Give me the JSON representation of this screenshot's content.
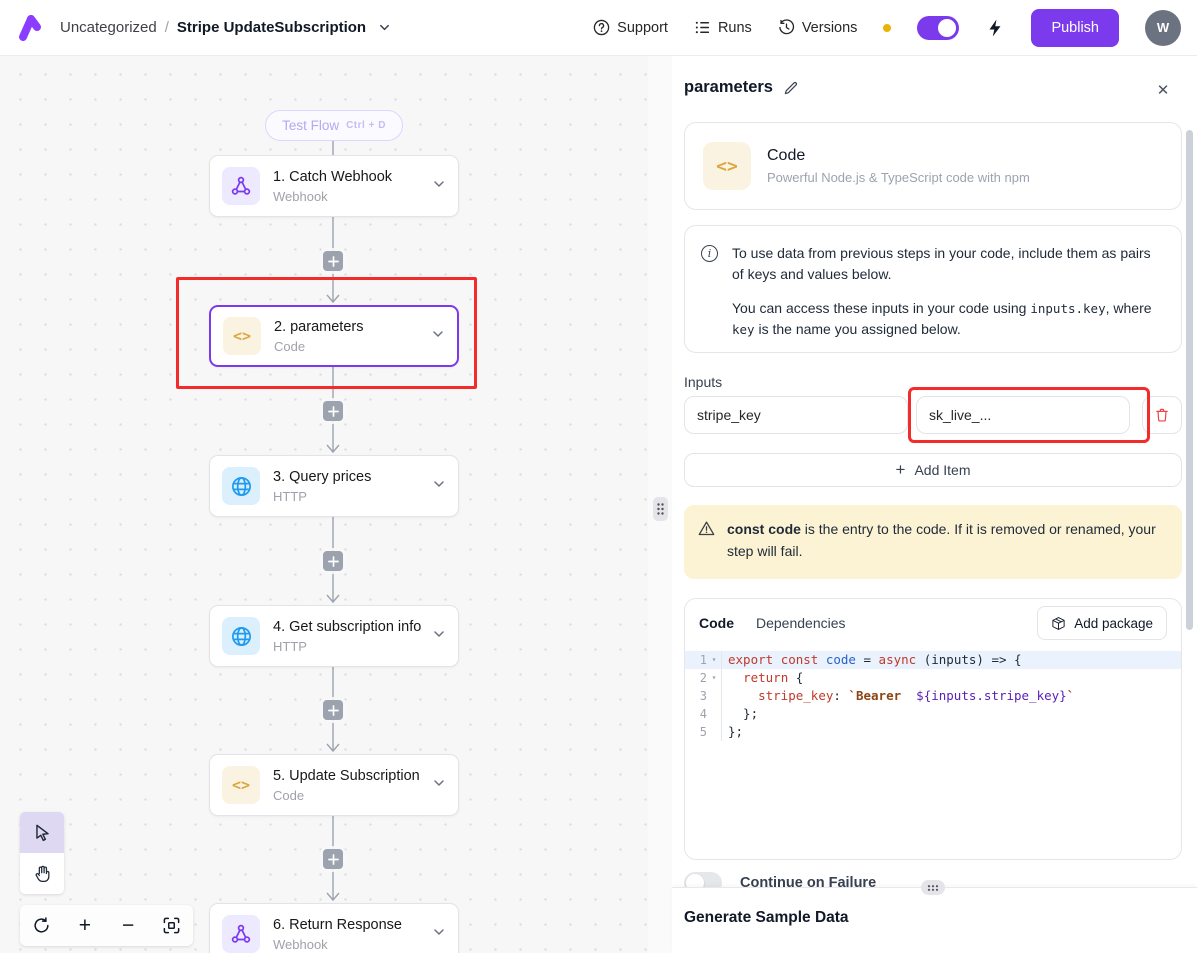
{
  "colors": {
    "accent": "#7c3aed",
    "annotation_red": "#f32b2b",
    "warning_bg": "#fbf3d4",
    "node_webhook_icon": "#7c3aed",
    "node_http_icon": "#1e9bf0",
    "node_code_icon": "#dda63e",
    "status_dot": "#eab308"
  },
  "icons": {
    "close": "✕",
    "plus": "+",
    "minus": "−",
    "code_glyph": "<>",
    "info_glyph": "i",
    "fold": "▾",
    "chevron": "⌄"
  },
  "header": {
    "breadcrumb": {
      "category": "Uncategorized",
      "separator": "/",
      "flow_name": "Stripe UpdateSubscription"
    },
    "nav": {
      "support": "Support",
      "runs": "Runs",
      "versions": "Versions"
    },
    "publish_label": "Publish",
    "avatar_initial": "W"
  },
  "canvas": {
    "test_flow": {
      "label": "Test Flow",
      "shortcut": "Ctrl + D"
    },
    "nodes": [
      {
        "title": "1. Catch Webhook",
        "subtitle": "Webhook",
        "icon": "webhook-icon"
      },
      {
        "title": "2. parameters",
        "subtitle": "Code",
        "icon": "code-icon",
        "selected": true
      },
      {
        "title": "3. Query prices",
        "subtitle": "HTTP",
        "icon": "globe-icon"
      },
      {
        "title": "4. Get subscription info",
        "subtitle": "HTTP",
        "icon": "globe-icon"
      },
      {
        "title": "5. Update Subscription",
        "subtitle": "Code",
        "icon": "code-icon"
      },
      {
        "title": "6. Return Response",
        "subtitle": "Webhook",
        "icon": "webhook-icon"
      }
    ]
  },
  "panel": {
    "title": "parameters",
    "piece": {
      "name": "Code",
      "description": "Powerful Node.js & TypeScript code with npm"
    },
    "info": {
      "p1": "To use data from previous steps in your code, include them as pairs of keys and values below.",
      "p2_pre": "You can access these inputs in your code using ",
      "p2_code1": "inputs.key",
      "p2_mid": ", where ",
      "p2_code2": "key",
      "p2_post": " is the name you assigned below."
    },
    "inputs": {
      "label": "Inputs",
      "rows": [
        {
          "key": "stripe_key",
          "value": "sk_live_..."
        }
      ],
      "add_item_label": "Add Item"
    },
    "warning": {
      "bold": "const code",
      "text": " is the entry to the code. If it is removed or renamed, your step will fail."
    },
    "code_card": {
      "tab_code": "Code",
      "tab_dependencies": "Dependencies",
      "add_package_label": "Add package",
      "lines": [
        {
          "n": "1",
          "fold": true,
          "highlight": true,
          "tokens": [
            [
              "export",
              "kw"
            ],
            [
              " ",
              "pl"
            ],
            [
              "const",
              "kw"
            ],
            [
              " ",
              "pl"
            ],
            [
              "code",
              "def"
            ],
            [
              " = ",
              "pl"
            ],
            [
              "async",
              "kw"
            ],
            [
              " (inputs) => {",
              "pl"
            ]
          ]
        },
        {
          "n": "2",
          "fold": true,
          "highlight": false,
          "tokens": [
            [
              "  ",
              "pl"
            ],
            [
              "return",
              "kw"
            ],
            [
              " {",
              "pl"
            ]
          ]
        },
        {
          "n": "3",
          "fold": false,
          "highlight": false,
          "tokens": [
            [
              "    ",
              "pl"
            ],
            [
              "stripe_key",
              "kw"
            ],
            [
              ": ",
              "pl"
            ],
            [
              "`Bearer  ",
              "str"
            ],
            [
              "${inputs.stripe_key}",
              "interp"
            ],
            [
              "`",
              "str"
            ]
          ]
        },
        {
          "n": "4",
          "fold": false,
          "highlight": false,
          "tokens": [
            [
              "  };",
              "pl"
            ]
          ]
        },
        {
          "n": "5",
          "fold": false,
          "highlight": false,
          "tokens": [
            [
              "};",
              "pl"
            ]
          ]
        }
      ]
    },
    "continue_on_failure_label": "Continue on Failure",
    "bottom": {
      "title": "Generate Sample Data"
    }
  }
}
